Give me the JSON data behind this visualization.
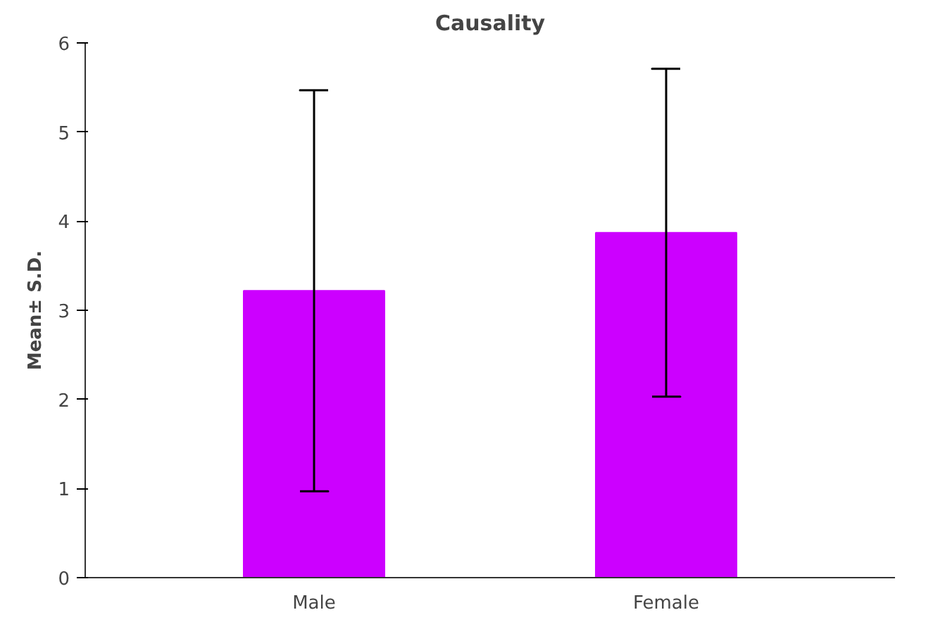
{
  "chart_data": {
    "type": "bar",
    "title": "Causality",
    "ylabel": "Mean± S.D.",
    "categories": [
      "Male",
      "Female"
    ],
    "values": [
      3.22,
      3.87
    ],
    "errors": [
      2.25,
      1.84
    ],
    "color": "#cc00ff",
    "ylim": [
      0,
      6
    ],
    "yticks": [
      0,
      1,
      2,
      3,
      4,
      5,
      6
    ],
    "grid": false
  }
}
